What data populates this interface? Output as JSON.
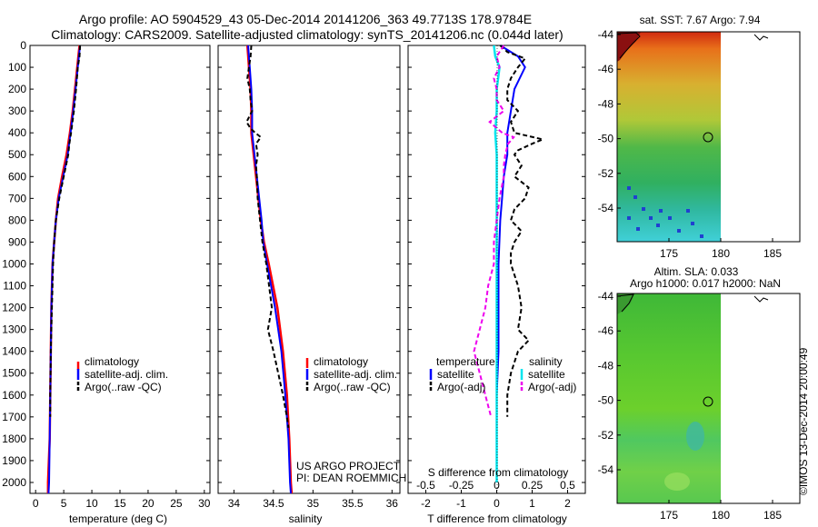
{
  "header": {
    "title_line1": "Argo profile: AO 5904529_43 05-Dec-2014 20141206_363 49.7713S 178.9784E",
    "title_line2": "Climatology: CARS2009. Satellite-adjusted climatology: synTS_20141206.nc (0.044d later)"
  },
  "colors": {
    "climatology": "#ff0000",
    "satellite": "#0000ff",
    "argo": "#000000",
    "temp_satellite": "#0000ff",
    "sal_satellite": "#00e5ee",
    "sal_argo": "#ee00ee"
  },
  "panels": {
    "temperature": {
      "xlabel": "temperature (deg C)",
      "xticks": [
        "0",
        "5",
        "10",
        "15",
        "20",
        "25",
        "30"
      ],
      "legend": [
        "climatology",
        "satellite-adj. clim.",
        "Argo(..raw -QC)"
      ]
    },
    "salinity": {
      "xlabel": "salinity",
      "xticks": [
        "34",
        "34.5",
        "35",
        "35.5",
        "36"
      ],
      "legend": [
        "climatology",
        "satellite-adj. clim.",
        "Argo(..raw -QC)"
      ],
      "note1": "US ARGO PROJECT",
      "note2": "PI: DEAN ROEMMICH"
    },
    "difference": {
      "xlabel": "T difference from climatology",
      "s_label": "S difference from climatology",
      "xticks": [
        "-2",
        "-1",
        "0",
        "1",
        "2"
      ],
      "s_ticks": [
        "-0.5",
        "-0.25",
        "0",
        "0.25",
        "0.5"
      ],
      "legend_temp_title": "temperature",
      "legend_temp": [
        "satellite",
        "Argo(-adj)"
      ],
      "legend_sal_title": "salinity",
      "legend_sal": [
        "satellite",
        "Argo(-adj)"
      ]
    },
    "depth_ticks": [
      "0",
      "100",
      "200",
      "300",
      "400",
      "500",
      "600",
      "700",
      "800",
      "900",
      "1000",
      "1100",
      "1200",
      "1300",
      "1400",
      "1500",
      "1600",
      "1700",
      "1800",
      "1900",
      "2000"
    ]
  },
  "maps": {
    "sst_title": "sat. SST: 7.67 Argo: 7.94",
    "sla_title_line1": "Altim. SLA: 0.033",
    "sla_title_line2": "Argo h1000: 0.017 h2000: NaN",
    "lat_ticks": [
      "-44",
      "-46",
      "-48",
      "-50",
      "-52",
      "-54"
    ],
    "lon_ticks": [
      "175",
      "180",
      "185"
    ]
  },
  "footer": {
    "imos_stamp": "©IMOS 13-Dec-2014 20:00:49"
  },
  "chart_data": [
    {
      "type": "line",
      "name": "temperature-profile",
      "xlabel": "temperature (deg C)",
      "xlim": [
        -1,
        31
      ],
      "ylim": [
        2050,
        0
      ],
      "series": [
        {
          "name": "climatology",
          "depth": [
            0,
            50,
            100,
            200,
            300,
            400,
            500,
            600,
            700,
            800,
            900,
            1000,
            1200,
            1400,
            1600,
            1800,
            2000,
            2050
          ],
          "values": [
            7.8,
            7.6,
            7.4,
            7.0,
            6.6,
            6.1,
            5.5,
            4.7,
            4.0,
            3.6,
            3.3,
            3.0,
            2.8,
            2.7,
            2.6,
            2.5,
            2.2,
            2.2
          ]
        },
        {
          "name": "satellite-adj. clim.",
          "depth": [
            0,
            50,
            100,
            200,
            300,
            400,
            500,
            600,
            700,
            800,
            900,
            1000,
            1200,
            1400,
            1600,
            1800,
            2000,
            2050
          ],
          "values": [
            7.9,
            7.7,
            7.5,
            7.1,
            6.7,
            6.2,
            5.7,
            4.9,
            4.1,
            3.6,
            3.3,
            3.0,
            2.8,
            2.7,
            2.6,
            2.5,
            2.4,
            2.3
          ]
        },
        {
          "name": "Argo(..raw -QC)",
          "depth": [
            0,
            50,
            100,
            200,
            300,
            400,
            450,
            500,
            600,
            700,
            800,
            900,
            1000,
            1200,
            1400,
            1600,
            1700
          ],
          "values": [
            7.9,
            7.8,
            7.5,
            7.2,
            6.8,
            6.3,
            6.0,
            5.8,
            5.0,
            4.2,
            3.6,
            3.3,
            3.1,
            2.9,
            2.7,
            2.6,
            2.6
          ]
        }
      ]
    },
    {
      "type": "line",
      "name": "salinity-profile",
      "xlabel": "salinity",
      "xlim": [
        33.8,
        36.1
      ],
      "ylim": [
        2050,
        0
      ],
      "series": [
        {
          "name": "climatology",
          "depth": [
            0,
            100,
            200,
            300,
            400,
            500,
            600,
            700,
            800,
            900,
            1000,
            1200,
            1400,
            1600,
            1800,
            2000,
            2050
          ],
          "values": [
            34.17,
            34.19,
            34.21,
            34.22,
            34.22,
            34.25,
            34.28,
            34.31,
            34.34,
            34.38,
            34.44,
            34.55,
            34.62,
            34.67,
            34.7,
            34.72,
            34.73
          ]
        },
        {
          "name": "satellite-adj. clim.",
          "depth": [
            0,
            100,
            200,
            300,
            400,
            500,
            600,
            700,
            800,
            900,
            1000,
            1200,
            1400,
            1600,
            1800,
            2000,
            2050
          ],
          "values": [
            34.18,
            34.2,
            34.22,
            34.23,
            34.23,
            34.26,
            34.29,
            34.32,
            34.35,
            34.37,
            34.42,
            34.52,
            34.6,
            34.65,
            34.69,
            34.71,
            34.72
          ]
        },
        {
          "name": "Argo(..raw -QC)",
          "depth": [
            0,
            50,
            100,
            150,
            200,
            250,
            300,
            350,
            380,
            400,
            420,
            450,
            500,
            550,
            600,
            700,
            800,
            900,
            1000,
            1200,
            1300,
            1400,
            1500,
            1600,
            1700,
            1750
          ],
          "values": [
            34.22,
            34.21,
            34.19,
            34.17,
            34.2,
            34.21,
            34.23,
            34.16,
            34.21,
            34.27,
            34.34,
            34.28,
            34.3,
            34.28,
            34.29,
            34.3,
            34.33,
            34.36,
            34.41,
            34.48,
            34.43,
            34.5,
            34.56,
            34.62,
            34.67,
            34.69
          ]
        }
      ]
    },
    {
      "type": "line",
      "name": "difference-profile",
      "xlabel": "T difference from climatology",
      "xlim": [
        -2.5,
        2.5
      ],
      "s_xlim": [
        -0.625,
        0.625
      ],
      "ylim": [
        2050,
        0
      ],
      "series": [
        {
          "name": "temperature satellite",
          "axis": "T",
          "depth": [
            0,
            50,
            100,
            200,
            300,
            400,
            500,
            600,
            700,
            800,
            1000,
            1200,
            1400,
            1600,
            1800,
            2000
          ],
          "values": [
            0.1,
            0.6,
            0.8,
            0.5,
            0.4,
            0.3,
            0.3,
            0.2,
            0.15,
            0.1,
            0.05,
            0.05,
            0.05,
            0.0,
            0.0,
            0.0
          ]
        },
        {
          "name": "temperature Argo(-adj)",
          "axis": "T",
          "depth": [
            0,
            30,
            60,
            100,
            150,
            200,
            250,
            300,
            350,
            400,
            430,
            450,
            480,
            500,
            550,
            600,
            650,
            700,
            750,
            800,
            850,
            900,
            950,
            1000,
            1100,
            1200,
            1300,
            1350,
            1400,
            1500,
            1600,
            1700
          ],
          "values": [
            0.1,
            0.3,
            0.8,
            0.6,
            0.4,
            0.3,
            0.3,
            0.6,
            0.4,
            0.5,
            1.3,
            1.0,
            0.6,
            0.5,
            0.7,
            0.5,
            0.9,
            0.8,
            0.5,
            0.4,
            0.7,
            0.5,
            0.4,
            0.4,
            0.6,
            0.7,
            0.6,
            0.9,
            0.6,
            0.4,
            0.3,
            0.3
          ]
        },
        {
          "name": "salinity satellite",
          "axis": "S",
          "depth": [
            0,
            50,
            100,
            150,
            200,
            300,
            400,
            500,
            600,
            700,
            800,
            1000,
            1200,
            1400,
            1600,
            1800,
            2000
          ],
          "values": [
            -0.02,
            -0.01,
            0.02,
            0.01,
            0.0,
            0.0,
            -0.01,
            0.0,
            0.0,
            0.0,
            0.0,
            0.0,
            0.0,
            0.0,
            0.0,
            0.0,
            0.0
          ]
        },
        {
          "name": "salinity Argo(-adj)",
          "axis": "S",
          "depth": [
            0,
            50,
            100,
            150,
            200,
            250,
            300,
            350,
            400,
            420,
            450,
            500,
            550,
            600,
            700,
            800,
            900,
            1000,
            1100,
            1200,
            1300,
            1400,
            1500,
            1600,
            1700
          ],
          "values": [
            0.05,
            0.0,
            0.02,
            -0.02,
            0.0,
            0.0,
            0.05,
            -0.05,
            0.04,
            0.12,
            0.08,
            0.06,
            0.05,
            0.05,
            0.02,
            0.0,
            -0.02,
            -0.02,
            -0.06,
            -0.08,
            -0.12,
            -0.16,
            -0.12,
            -0.08,
            -0.04
          ]
        }
      ]
    }
  ]
}
